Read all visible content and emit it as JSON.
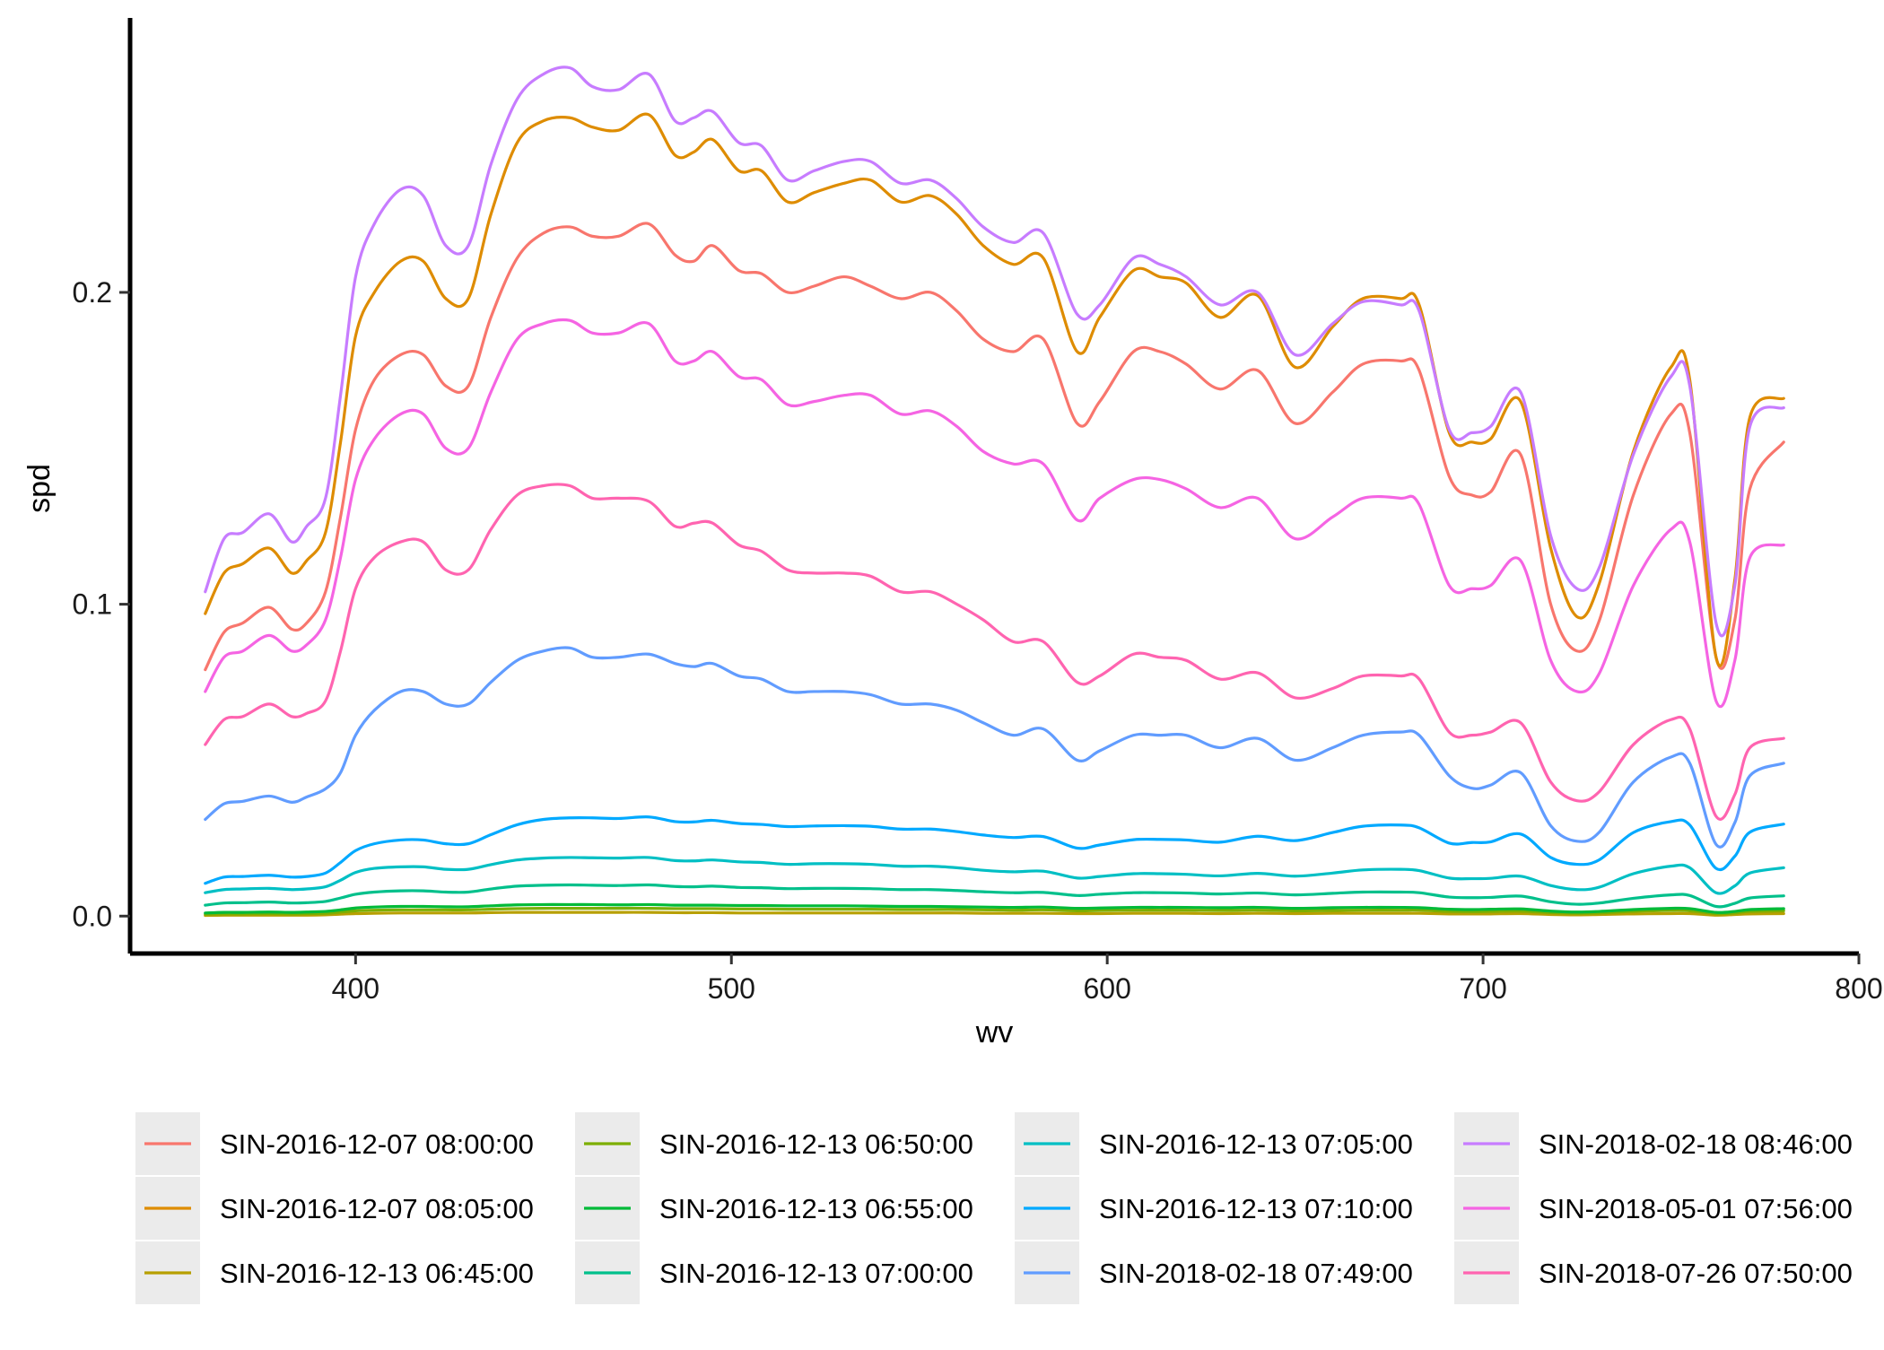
{
  "chart_data": {
    "type": "line",
    "xlabel": "wv",
    "ylabel": "spd",
    "xlim": [
      340,
      800
    ],
    "ylim": [
      -0.012,
      0.288
    ],
    "x_ticks": [
      400,
      500,
      600,
      700,
      800
    ],
    "x_tick_labels": [
      "400",
      "500",
      "600",
      "700",
      "800"
    ],
    "y_ticks": [
      0.0,
      0.1,
      0.2
    ],
    "y_tick_labels": [
      "0.0",
      "0.1",
      "0.2"
    ],
    "grid": false,
    "legend_position": "bottom",
    "x": [
      360,
      365,
      370,
      377,
      383,
      387,
      392,
      396,
      400,
      405,
      412,
      418,
      424,
      430,
      436,
      443,
      450,
      457,
      463,
      470,
      478,
      485,
      490,
      495,
      502,
      508,
      515,
      522,
      530,
      537,
      545,
      553,
      560,
      567,
      575,
      583,
      592,
      598,
      607,
      614,
      621,
      630,
      640,
      650,
      660,
      668,
      678,
      683,
      691,
      697,
      702,
      710,
      718,
      725,
      731,
      740,
      750,
      755,
      762,
      767,
      771,
      780
    ],
    "series": [
      {
        "name": "SIN-2016-12-07 08:00:00",
        "color": "#F8766D",
        "values": [
          0.079,
          0.091,
          0.094,
          0.099,
          0.092,
          0.094,
          0.104,
          0.128,
          0.156,
          0.172,
          0.18,
          0.18,
          0.17,
          0.17,
          0.192,
          0.211,
          0.219,
          0.221,
          0.218,
          0.218,
          0.222,
          0.212,
          0.21,
          0.215,
          0.207,
          0.206,
          0.2,
          0.202,
          0.205,
          0.202,
          0.198,
          0.2,
          0.194,
          0.185,
          0.181,
          0.185,
          0.158,
          0.165,
          0.181,
          0.181,
          0.177,
          0.169,
          0.175,
          0.158,
          0.168,
          0.177,
          0.178,
          0.175,
          0.141,
          0.135,
          0.136,
          0.148,
          0.1,
          0.085,
          0.095,
          0.135,
          0.161,
          0.155,
          0.083,
          0.095,
          0.137,
          0.152
        ]
      },
      {
        "name": "SIN-2016-12-07 08:05:00",
        "color": "#DE8C00",
        "values": [
          0.097,
          0.11,
          0.113,
          0.118,
          0.11,
          0.114,
          0.123,
          0.152,
          0.186,
          0.2,
          0.21,
          0.21,
          0.198,
          0.198,
          0.225,
          0.248,
          0.255,
          0.256,
          0.253,
          0.252,
          0.257,
          0.244,
          0.245,
          0.249,
          0.239,
          0.239,
          0.229,
          0.232,
          0.235,
          0.236,
          0.229,
          0.231,
          0.225,
          0.215,
          0.209,
          0.211,
          0.181,
          0.192,
          0.207,
          0.205,
          0.203,
          0.192,
          0.199,
          0.176,
          0.189,
          0.198,
          0.198,
          0.196,
          0.155,
          0.152,
          0.153,
          0.165,
          0.118,
          0.096,
          0.107,
          0.149,
          0.176,
          0.172,
          0.083,
          0.108,
          0.16,
          0.166
        ]
      },
      {
        "name": "SIN-2016-12-13 06:45:00",
        "color": "#B79F00",
        "values": [
          0.0002,
          0.0003,
          0.0003,
          0.0003,
          0.0003,
          0.0003,
          0.0004,
          0.0006,
          0.0008,
          0.0009,
          0.001,
          0.001,
          0.001,
          0.001,
          0.0011,
          0.0012,
          0.0012,
          0.0012,
          0.0012,
          0.0012,
          0.0012,
          0.0011,
          0.0011,
          0.0011,
          0.001,
          0.001,
          0.001,
          0.001,
          0.001,
          0.001,
          0.001,
          0.001,
          0.001,
          0.0009,
          0.0009,
          0.0009,
          0.0008,
          0.0008,
          0.0009,
          0.0009,
          0.0009,
          0.0008,
          0.0009,
          0.0008,
          0.0009,
          0.0009,
          0.0009,
          0.0009,
          0.0007,
          0.0007,
          0.0007,
          0.0008,
          0.0005,
          0.0004,
          0.0005,
          0.0007,
          0.0008,
          0.0008,
          0.0003,
          0.0005,
          0.0007,
          0.0008
        ]
      },
      {
        "name": "SIN-2016-12-13 06:50:00",
        "color": "#7CAE00",
        "values": [
          0.0006,
          0.0007,
          0.0007,
          0.0008,
          0.0007,
          0.0008,
          0.0009,
          0.0013,
          0.0017,
          0.0019,
          0.002,
          0.002,
          0.002,
          0.002,
          0.0022,
          0.0024,
          0.0025,
          0.0025,
          0.0025,
          0.0025,
          0.0025,
          0.0024,
          0.0024,
          0.0024,
          0.0023,
          0.0023,
          0.0022,
          0.0022,
          0.0022,
          0.0022,
          0.0021,
          0.0021,
          0.0021,
          0.002,
          0.0019,
          0.002,
          0.0017,
          0.0018,
          0.0019,
          0.0019,
          0.0019,
          0.0018,
          0.0019,
          0.0017,
          0.0018,
          0.0019,
          0.0019,
          0.0019,
          0.0015,
          0.0014,
          0.0015,
          0.0016,
          0.0011,
          0.0009,
          0.001,
          0.0015,
          0.0018,
          0.0017,
          0.0008,
          0.001,
          0.0015,
          0.0017
        ]
      },
      {
        "name": "SIN-2016-12-13 06:55:00",
        "color": "#00BA38",
        "values": [
          0.001,
          0.0012,
          0.0012,
          0.0013,
          0.0012,
          0.0013,
          0.0015,
          0.002,
          0.0026,
          0.0029,
          0.0031,
          0.0031,
          0.003,
          0.003,
          0.0033,
          0.0036,
          0.0037,
          0.0037,
          0.0037,
          0.0036,
          0.0037,
          0.0035,
          0.0035,
          0.0035,
          0.0034,
          0.0034,
          0.0033,
          0.0033,
          0.0033,
          0.0032,
          0.0031,
          0.0031,
          0.003,
          0.0029,
          0.0028,
          0.0029,
          0.0025,
          0.0026,
          0.0028,
          0.0028,
          0.0028,
          0.0027,
          0.0028,
          0.0025,
          0.0027,
          0.0028,
          0.0028,
          0.0027,
          0.0022,
          0.0021,
          0.0022,
          0.0023,
          0.0016,
          0.0013,
          0.0015,
          0.0021,
          0.0025,
          0.0024,
          0.0012,
          0.0015,
          0.0021,
          0.0024
        ]
      },
      {
        "name": "SIN-2016-12-13 07:00:00",
        "color": "#00C08B",
        "values": [
          0.0035,
          0.0042,
          0.0043,
          0.0045,
          0.0042,
          0.0043,
          0.0047,
          0.0058,
          0.007,
          0.0077,
          0.0081,
          0.0081,
          0.0077,
          0.0077,
          0.0087,
          0.0096,
          0.0099,
          0.01,
          0.0099,
          0.0098,
          0.01,
          0.0095,
          0.0094,
          0.0096,
          0.0092,
          0.0091,
          0.0088,
          0.0089,
          0.0089,
          0.0088,
          0.0085,
          0.0085,
          0.0082,
          0.0078,
          0.0075,
          0.0076,
          0.0066,
          0.007,
          0.0075,
          0.0075,
          0.0074,
          0.0071,
          0.0074,
          0.0068,
          0.0073,
          0.0077,
          0.0077,
          0.0075,
          0.0061,
          0.0059,
          0.006,
          0.0064,
          0.0046,
          0.0038,
          0.0042,
          0.0057,
          0.0068,
          0.0066,
          0.0031,
          0.0041,
          0.0058,
          0.0065
        ]
      },
      {
        "name": "SIN-2016-12-13 07:05:00",
        "color": "#00BFC4",
        "values": [
          0.0075,
          0.0085,
          0.0087,
          0.0089,
          0.0085,
          0.0087,
          0.0094,
          0.0115,
          0.014,
          0.0153,
          0.0158,
          0.0158,
          0.015,
          0.015,
          0.0165,
          0.018,
          0.0186,
          0.0188,
          0.0187,
          0.0186,
          0.0188,
          0.0178,
          0.0177,
          0.018,
          0.0174,
          0.0172,
          0.0166,
          0.0168,
          0.0168,
          0.0166,
          0.016,
          0.016,
          0.0155,
          0.0147,
          0.0142,
          0.0144,
          0.0122,
          0.0127,
          0.0136,
          0.0136,
          0.0134,
          0.0129,
          0.0137,
          0.0128,
          0.0138,
          0.0148,
          0.015,
          0.0146,
          0.0122,
          0.012,
          0.0121,
          0.0128,
          0.0098,
          0.0085,
          0.0093,
          0.0136,
          0.016,
          0.0155,
          0.0075,
          0.0097,
          0.0138,
          0.0155
        ]
      },
      {
        "name": "SIN-2016-12-13 07:10:00",
        "color": "#00A9FF",
        "values": [
          0.0105,
          0.0125,
          0.0127,
          0.0131,
          0.0125,
          0.0127,
          0.0138,
          0.0172,
          0.021,
          0.0232,
          0.0244,
          0.0244,
          0.0232,
          0.0232,
          0.0261,
          0.0293,
          0.031,
          0.0315,
          0.0315,
          0.0313,
          0.0318,
          0.0303,
          0.0302,
          0.0307,
          0.0297,
          0.0294,
          0.0287,
          0.0289,
          0.029,
          0.0288,
          0.0279,
          0.0279,
          0.0271,
          0.026,
          0.0252,
          0.0255,
          0.0218,
          0.0228,
          0.0245,
          0.0246,
          0.0244,
          0.0237,
          0.0256,
          0.0242,
          0.0268,
          0.0288,
          0.0292,
          0.0283,
          0.0234,
          0.0236,
          0.0238,
          0.0263,
          0.0188,
          0.0166,
          0.0181,
          0.0268,
          0.0303,
          0.0292,
          0.0153,
          0.0192,
          0.0269,
          0.0295
        ]
      },
      {
        "name": "SIN-2018-02-18 07:49:00",
        "color": "#619CFF",
        "values": [
          0.031,
          0.036,
          0.0368,
          0.0385,
          0.0365,
          0.0382,
          0.0408,
          0.046,
          0.058,
          0.066,
          0.072,
          0.072,
          0.068,
          0.068,
          0.075,
          0.082,
          0.085,
          0.086,
          0.083,
          0.083,
          0.084,
          0.081,
          0.08,
          0.081,
          0.077,
          0.076,
          0.072,
          0.072,
          0.072,
          0.071,
          0.068,
          0.068,
          0.066,
          0.062,
          0.058,
          0.06,
          0.05,
          0.053,
          0.058,
          0.058,
          0.058,
          0.054,
          0.057,
          0.05,
          0.054,
          0.058,
          0.059,
          0.058,
          0.045,
          0.041,
          0.042,
          0.046,
          0.029,
          0.024,
          0.027,
          0.043,
          0.051,
          0.049,
          0.023,
          0.03,
          0.045,
          0.049
        ]
      },
      {
        "name": "SIN-2018-02-18 08:46:00",
        "color": "#C77CFF",
        "values": [
          0.104,
          0.121,
          0.123,
          0.129,
          0.12,
          0.125,
          0.134,
          0.167,
          0.205,
          0.222,
          0.233,
          0.231,
          0.215,
          0.215,
          0.241,
          0.262,
          0.27,
          0.272,
          0.266,
          0.265,
          0.27,
          0.255,
          0.256,
          0.258,
          0.248,
          0.247,
          0.236,
          0.239,
          0.242,
          0.242,
          0.235,
          0.236,
          0.23,
          0.221,
          0.216,
          0.219,
          0.193,
          0.196,
          0.211,
          0.209,
          0.205,
          0.196,
          0.2,
          0.18,
          0.19,
          0.197,
          0.196,
          0.194,
          0.156,
          0.155,
          0.157,
          0.168,
          0.122,
          0.105,
          0.112,
          0.148,
          0.173,
          0.17,
          0.094,
          0.106,
          0.157,
          0.163
        ]
      },
      {
        "name": "SIN-2018-05-01 07:56:00",
        "color": "#F564E3",
        "values": [
          0.072,
          0.083,
          0.085,
          0.09,
          0.085,
          0.087,
          0.095,
          0.115,
          0.14,
          0.153,
          0.161,
          0.161,
          0.15,
          0.15,
          0.168,
          0.185,
          0.19,
          0.191,
          0.187,
          0.187,
          0.19,
          0.178,
          0.178,
          0.181,
          0.173,
          0.172,
          0.164,
          0.165,
          0.167,
          0.167,
          0.161,
          0.162,
          0.157,
          0.149,
          0.145,
          0.145,
          0.127,
          0.134,
          0.14,
          0.14,
          0.137,
          0.131,
          0.134,
          0.121,
          0.128,
          0.134,
          0.134,
          0.132,
          0.106,
          0.105,
          0.106,
          0.114,
          0.082,
          0.072,
          0.078,
          0.106,
          0.124,
          0.12,
          0.069,
          0.082,
          0.115,
          0.119
        ]
      },
      {
        "name": "SIN-2018-07-26 07:50:00",
        "color": "#FF64B0",
        "values": [
          0.055,
          0.063,
          0.064,
          0.068,
          0.064,
          0.065,
          0.069,
          0.085,
          0.105,
          0.115,
          0.12,
          0.12,
          0.111,
          0.111,
          0.124,
          0.135,
          0.138,
          0.138,
          0.134,
          0.134,
          0.133,
          0.125,
          0.126,
          0.126,
          0.119,
          0.117,
          0.111,
          0.11,
          0.11,
          0.109,
          0.104,
          0.104,
          0.1,
          0.095,
          0.088,
          0.088,
          0.075,
          0.077,
          0.084,
          0.083,
          0.082,
          0.076,
          0.078,
          0.07,
          0.073,
          0.077,
          0.077,
          0.076,
          0.059,
          0.058,
          0.059,
          0.062,
          0.043,
          0.037,
          0.04,
          0.055,
          0.063,
          0.06,
          0.032,
          0.039,
          0.054,
          0.057
        ]
      }
    ]
  }
}
